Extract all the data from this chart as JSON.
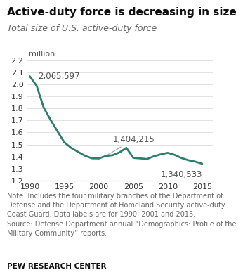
{
  "title": "Active-duty force is decreasing in size",
  "subtitle": "Total size of U.S. active-duty force",
  "ylabel_unit": "million",
  "line_color": "#2e7d6e",
  "background_color": "#ffffff",
  "years": [
    1990,
    1991,
    1992,
    1993,
    1994,
    1995,
    1996,
    1997,
    1998,
    1999,
    2000,
    2001,
    2002,
    2003,
    2004,
    2005,
    2006,
    2007,
    2008,
    2009,
    2010,
    2011,
    2012,
    2013,
    2014,
    2015
  ],
  "values": [
    2.065597,
    1.986,
    1.807177,
    1.705103,
    1.61049,
    1.518224,
    1.471722,
    1.438624,
    1.406835,
    1.385703,
    1.384338,
    1.404215,
    1.411287,
    1.434377,
    1.47253,
    1.389185,
    1.384968,
    1.379551,
    1.402227,
    1.418542,
    1.430985,
    1.41415,
    1.388028,
    1.369532,
    1.357686,
    1.340533
  ],
  "xlim": [
    1989.5,
    2016.5
  ],
  "ylim": [
    1.2,
    2.25
  ],
  "yticks": [
    1.2,
    1.3,
    1.4,
    1.5,
    1.6,
    1.7,
    1.8,
    1.9,
    2.0,
    2.1,
    2.2
  ],
  "xticks": [
    1990,
    1995,
    2000,
    2005,
    2010,
    2015
  ],
  "note_text": "Note: Includes the four military branches of the Department of\nDefense and the Department of Homeland Security active-duty\nCoast Guard. Data labels are for 1990, 2001 and 2015.\nSource: Defense Department annual “Demographics: Profile of the\nMilitary Community” reports.",
  "footer_text": "PEW RESEARCH CENTER",
  "title_fontsize": 11,
  "subtitle_fontsize": 9,
  "tick_fontsize": 8,
  "annot_fontsize": 8.5,
  "note_fontsize": 7,
  "footer_fontsize": 7.5
}
